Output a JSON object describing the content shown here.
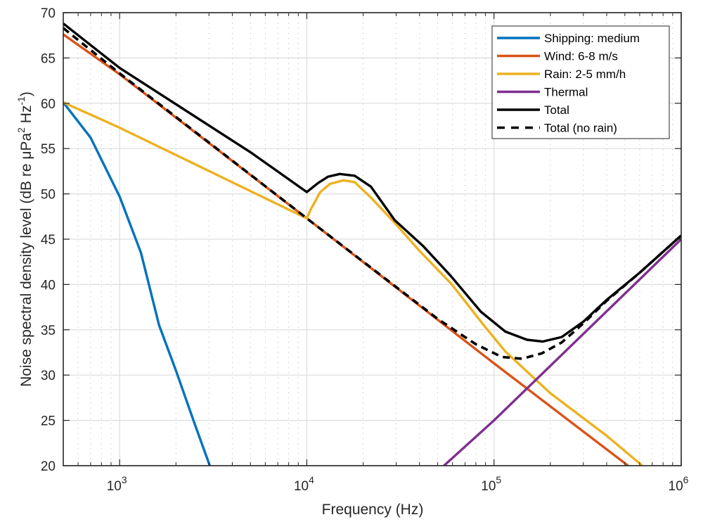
{
  "chart_data": {
    "type": "line",
    "title": "",
    "xlabel": "Frequency  (Hz)",
    "ylabel_parts": {
      "main": "Noise spectral density level  (dB re μPa",
      "sup1": "2",
      "mid": " Hz",
      "sup2": "-1",
      "end": ")"
    },
    "xscale": "log",
    "xlim": [
      500,
      1000000
    ],
    "ylim": [
      20,
      70
    ],
    "grid": "on (major solid, minor dotted on x)",
    "legend_position": "top-right",
    "x_ticks": [
      {
        "value": 1000,
        "base": "10",
        "exp": "3"
      },
      {
        "value": 10000,
        "base": "10",
        "exp": "4"
      },
      {
        "value": 100000,
        "base": "10",
        "exp": "5"
      },
      {
        "value": 1000000,
        "base": "10",
        "exp": "6"
      }
    ],
    "y_ticks": [
      20,
      25,
      30,
      35,
      40,
      45,
      50,
      55,
      60,
      65,
      70
    ],
    "series": [
      {
        "name": "Shipping: medium",
        "color": "#0072BD",
        "style": "solid",
        "points": [
          [
            500,
            60.1
          ],
          [
            700,
            56.2
          ],
          [
            1000,
            49.7
          ],
          [
            1300,
            43.5
          ],
          [
            1625,
            35.5
          ],
          [
            2000,
            30.5
          ],
          [
            2500,
            24.8
          ],
          [
            3030,
            20.0
          ]
        ]
      },
      {
        "name": "Wind: 6-8 m/s",
        "color": "#D95319",
        "style": "solid",
        "points": [
          [
            500,
            67.6
          ],
          [
            1000,
            63.2
          ],
          [
            10000,
            47.3
          ],
          [
            100000,
            31.3
          ],
          [
            520000,
            20.0
          ]
        ]
      },
      {
        "name": "Rain: 2-5 mm/h",
        "color": "#EDB120",
        "style": "solid",
        "points": [
          [
            500,
            60.1
          ],
          [
            1000,
            57.3
          ],
          [
            10000,
            47.3
          ],
          [
            10500,
            48.3
          ],
          [
            11800,
            50.2
          ],
          [
            13300,
            51.1
          ],
          [
            15700,
            51.5
          ],
          [
            18000,
            51.3
          ],
          [
            22000,
            49.6
          ],
          [
            29500,
            46.8
          ],
          [
            40000,
            43.7
          ],
          [
            59000,
            40.1
          ],
          [
            89000,
            35.4
          ],
          [
            115000,
            32.6
          ],
          [
            200000,
            28.0
          ],
          [
            400000,
            23.3
          ],
          [
            620000,
            20.0
          ]
        ]
      },
      {
        "name": "Thermal",
        "color": "#7E2F8E",
        "style": "solid",
        "points": [
          [
            54000,
            20.0
          ],
          [
            100000,
            25.0
          ],
          [
            1000000,
            45.0
          ]
        ]
      },
      {
        "name": "Total",
        "color": "#000000",
        "style": "solid",
        "points": [
          [
            500,
            68.8
          ],
          [
            1000,
            63.9
          ],
          [
            5000,
            54.6
          ],
          [
            10000,
            50.2
          ],
          [
            11500,
            51.2
          ],
          [
            13000,
            51.9
          ],
          [
            15000,
            52.2
          ],
          [
            18000,
            52.0
          ],
          [
            22000,
            50.8
          ],
          [
            29500,
            47.1
          ],
          [
            42000,
            44.2
          ],
          [
            59000,
            40.9
          ],
          [
            85000,
            37.0
          ],
          [
            115000,
            34.8
          ],
          [
            150000,
            33.9
          ],
          [
            182000,
            33.7
          ],
          [
            230000,
            34.2
          ],
          [
            300000,
            35.9
          ],
          [
            400000,
            38.3
          ],
          [
            600000,
            41.3
          ],
          [
            1000000,
            45.4
          ]
        ]
      },
      {
        "name": "Total (no rain)",
        "color": "#000000",
        "style": "dashed",
        "points": [
          [
            500,
            68.3
          ],
          [
            1000,
            63.3
          ],
          [
            10000,
            47.3
          ],
          [
            50000,
            36.2
          ],
          [
            80000,
            33.4
          ],
          [
            110000,
            32.0
          ],
          [
            141000,
            31.8
          ],
          [
            180000,
            32.4
          ],
          [
            230000,
            33.6
          ],
          [
            300000,
            35.7
          ],
          [
            400000,
            38.2
          ],
          [
            600000,
            41.3
          ],
          [
            1000000,
            45.4
          ]
        ]
      }
    ]
  }
}
